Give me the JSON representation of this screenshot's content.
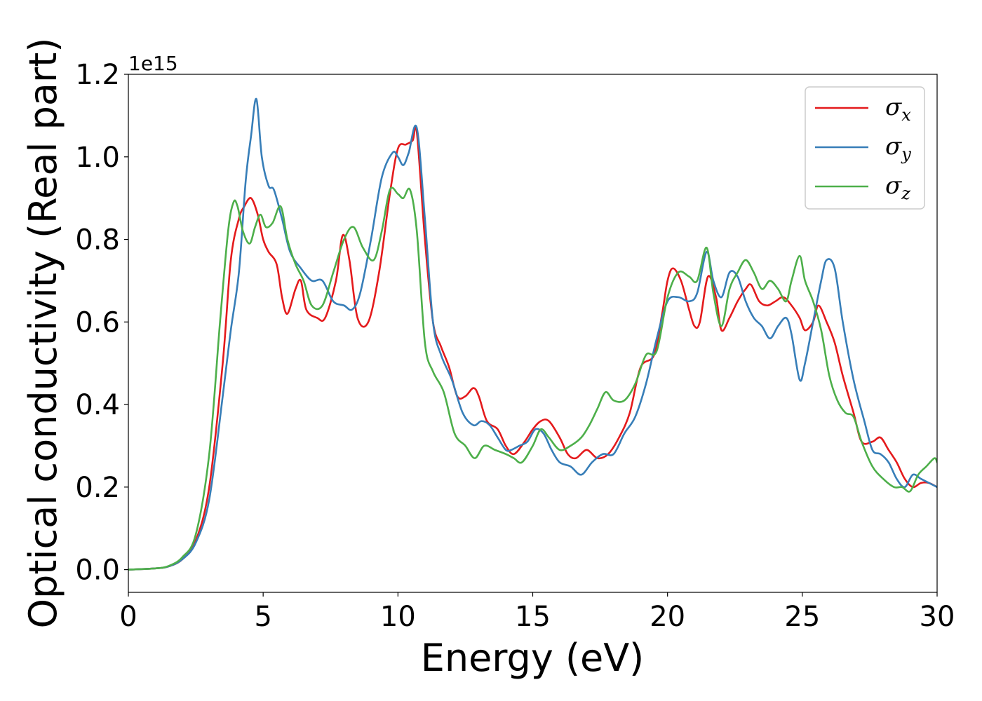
{
  "chart_data": {
    "type": "line",
    "title": "",
    "xlabel": "Energy (eV)",
    "ylabel": "Optical conductivity (Real part)",
    "y_offset_label": "1e15",
    "xlim": [
      0,
      30
    ],
    "ylim": [
      -0.055,
      1.2
    ],
    "x_ticks": [
      "0",
      "5",
      "10",
      "15",
      "20",
      "25",
      "30"
    ],
    "y_ticks": [
      "0.0",
      "0.2",
      "0.4",
      "0.6",
      "0.8",
      "1.0",
      "1.2"
    ],
    "grid": false,
    "legend_position": "top-right",
    "series": [
      {
        "name": "σx",
        "name_base": "σ",
        "name_sub": "x",
        "color": "#e41a1c",
        "x": [
          0,
          1,
          1.5,
          2,
          2.5,
          3,
          3.5,
          3.8,
          4.1,
          4.3,
          4.55,
          4.8,
          5.0,
          5.2,
          5.5,
          5.7,
          5.9,
          6.2,
          6.4,
          6.6,
          7.0,
          7.3,
          7.7,
          7.95,
          8.2,
          8.5,
          8.9,
          9.3,
          9.7,
          10.0,
          10.3,
          10.55,
          10.7,
          11.0,
          11.3,
          11.6,
          11.9,
          12.2,
          12.5,
          12.8,
          13.0,
          13.3,
          13.7,
          14.0,
          14.3,
          14.7,
          15.0,
          15.3,
          15.6,
          16.0,
          16.3,
          16.6,
          17.0,
          17.4,
          17.8,
          18.2,
          18.6,
          19.0,
          19.5,
          19.8,
          20.0,
          20.2,
          20.5,
          20.8,
          21.0,
          21.2,
          21.5,
          21.8,
          22.0,
          22.3,
          22.6,
          22.9,
          23.1,
          23.4,
          23.7,
          24.0,
          24.3,
          24.6,
          24.9,
          25.1,
          25.4,
          25.6,
          25.9,
          26.2,
          26.5,
          26.9,
          27.2,
          27.6,
          27.9,
          28.2,
          28.5,
          28.8,
          29.1,
          29.4,
          29.7,
          30
        ],
        "y": [
          0,
          0.003,
          0.008,
          0.025,
          0.07,
          0.2,
          0.5,
          0.75,
          0.85,
          0.88,
          0.9,
          0.86,
          0.8,
          0.77,
          0.74,
          0.66,
          0.62,
          0.68,
          0.7,
          0.63,
          0.61,
          0.61,
          0.7,
          0.81,
          0.75,
          0.61,
          0.6,
          0.72,
          0.91,
          1.02,
          1.03,
          1.04,
          1.06,
          0.8,
          0.6,
          0.54,
          0.49,
          0.42,
          0.42,
          0.44,
          0.42,
          0.36,
          0.34,
          0.3,
          0.28,
          0.31,
          0.34,
          0.36,
          0.36,
          0.32,
          0.28,
          0.27,
          0.29,
          0.27,
          0.28,
          0.32,
          0.38,
          0.49,
          0.52,
          0.62,
          0.7,
          0.73,
          0.7,
          0.63,
          0.59,
          0.6,
          0.71,
          0.66,
          0.58,
          0.61,
          0.65,
          0.68,
          0.69,
          0.65,
          0.64,
          0.65,
          0.66,
          0.64,
          0.61,
          0.58,
          0.6,
          0.64,
          0.6,
          0.55,
          0.47,
          0.38,
          0.31,
          0.31,
          0.32,
          0.29,
          0.26,
          0.22,
          0.2,
          0.21,
          0.21,
          0.2
        ]
      },
      {
        "name": "σy",
        "name_base": "σ",
        "name_sub": "y",
        "color": "#377eb8",
        "x": [
          0,
          1,
          1.5,
          2,
          2.5,
          3,
          3.5,
          3.8,
          4.1,
          4.35,
          4.55,
          4.75,
          4.95,
          5.2,
          5.4,
          5.7,
          6.0,
          6.4,
          6.8,
          7.2,
          7.6,
          8.0,
          8.3,
          8.6,
          9.0,
          9.4,
          9.8,
          10.0,
          10.2,
          10.4,
          10.7,
          11.0,
          11.3,
          11.6,
          12.0,
          12.4,
          12.8,
          13.1,
          13.4,
          13.7,
          14.0,
          14.2,
          14.5,
          14.8,
          15.1,
          15.4,
          15.7,
          16.0,
          16.4,
          16.8,
          17.2,
          17.6,
          18.0,
          18.4,
          18.8,
          19.2,
          19.6,
          20.0,
          20.4,
          20.8,
          21.1,
          21.45,
          21.7,
          22.0,
          22.3,
          22.6,
          22.9,
          23.2,
          23.5,
          23.8,
          24.1,
          24.4,
          24.6,
          24.9,
          25.1,
          25.4,
          25.7,
          25.9,
          26.2,
          26.5,
          26.9,
          27.3,
          27.6,
          27.9,
          28.2,
          28.5,
          28.8,
          29.1,
          29.4,
          29.7,
          30
        ],
        "y": [
          0,
          0.003,
          0.008,
          0.025,
          0.065,
          0.17,
          0.42,
          0.58,
          0.72,
          0.94,
          1.05,
          1.14,
          1.0,
          0.93,
          0.92,
          0.85,
          0.77,
          0.73,
          0.7,
          0.7,
          0.65,
          0.64,
          0.63,
          0.67,
          0.8,
          0.95,
          1.01,
          1.0,
          0.98,
          1.01,
          1.07,
          0.85,
          0.6,
          0.52,
          0.46,
          0.38,
          0.35,
          0.36,
          0.35,
          0.32,
          0.29,
          0.29,
          0.3,
          0.31,
          0.34,
          0.33,
          0.29,
          0.26,
          0.25,
          0.23,
          0.26,
          0.28,
          0.28,
          0.33,
          0.37,
          0.45,
          0.56,
          0.65,
          0.66,
          0.65,
          0.67,
          0.77,
          0.7,
          0.66,
          0.72,
          0.71,
          0.65,
          0.61,
          0.59,
          0.56,
          0.59,
          0.61,
          0.57,
          0.46,
          0.5,
          0.6,
          0.7,
          0.75,
          0.73,
          0.6,
          0.46,
          0.36,
          0.29,
          0.28,
          0.26,
          0.22,
          0.2,
          0.23,
          0.22,
          0.21,
          0.2
        ]
      },
      {
        "name": "σz",
        "name_base": "σ",
        "name_sub": "z",
        "color": "#4daf4a",
        "x": [
          0,
          1,
          1.5,
          2,
          2.5,
          3,
          3.4,
          3.7,
          3.9,
          4.05,
          4.25,
          4.5,
          4.7,
          4.9,
          5.1,
          5.35,
          5.65,
          5.9,
          6.2,
          6.5,
          6.8,
          7.2,
          7.6,
          8.0,
          8.35,
          8.7,
          9.1,
          9.4,
          9.7,
          10.0,
          10.2,
          10.45,
          10.7,
          11.0,
          11.3,
          11.7,
          12.1,
          12.5,
          12.85,
          13.2,
          13.6,
          14.0,
          14.3,
          14.6,
          15.0,
          15.3,
          15.6,
          16.0,
          16.4,
          16.8,
          17.1,
          17.4,
          17.7,
          18.0,
          18.4,
          18.8,
          19.2,
          19.6,
          20.0,
          20.4,
          20.8,
          21.1,
          21.45,
          21.7,
          22.0,
          22.3,
          22.6,
          22.9,
          23.2,
          23.5,
          23.8,
          24.1,
          24.4,
          24.6,
          24.9,
          25.1,
          25.4,
          25.7,
          26.0,
          26.3,
          26.6,
          26.9,
          27.2,
          27.6,
          28.0,
          28.4,
          28.7,
          29.0,
          29.3,
          29.6,
          29.9,
          30
        ],
        "y": [
          0,
          0.003,
          0.009,
          0.03,
          0.085,
          0.28,
          0.6,
          0.82,
          0.89,
          0.88,
          0.82,
          0.79,
          0.83,
          0.86,
          0.83,
          0.84,
          0.88,
          0.8,
          0.74,
          0.7,
          0.64,
          0.64,
          0.72,
          0.8,
          0.83,
          0.78,
          0.75,
          0.82,
          0.92,
          0.91,
          0.9,
          0.92,
          0.82,
          0.55,
          0.48,
          0.43,
          0.33,
          0.3,
          0.27,
          0.3,
          0.29,
          0.28,
          0.27,
          0.26,
          0.3,
          0.34,
          0.32,
          0.29,
          0.3,
          0.32,
          0.35,
          0.39,
          0.43,
          0.41,
          0.41,
          0.45,
          0.52,
          0.53,
          0.66,
          0.72,
          0.71,
          0.7,
          0.78,
          0.67,
          0.59,
          0.68,
          0.72,
          0.75,
          0.72,
          0.68,
          0.7,
          0.68,
          0.65,
          0.7,
          0.76,
          0.7,
          0.65,
          0.58,
          0.47,
          0.41,
          0.38,
          0.37,
          0.31,
          0.25,
          0.22,
          0.2,
          0.2,
          0.19,
          0.23,
          0.25,
          0.27,
          0.26
        ]
      }
    ]
  }
}
